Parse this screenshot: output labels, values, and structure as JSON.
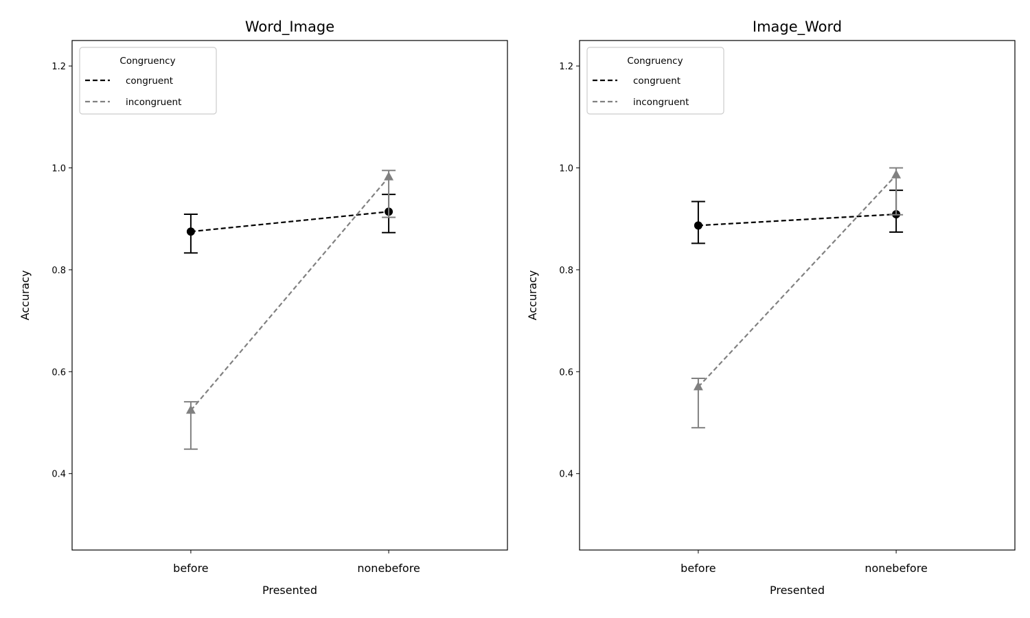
{
  "chart_data": [
    {
      "type": "line",
      "title": "Word_Image",
      "xlabel": "Presented",
      "ylabel": "Accuracy",
      "categories": [
        "before",
        "nonebefore"
      ],
      "ylim": [
        0.25,
        1.25
      ],
      "yticks": [
        0.4,
        0.6,
        0.8,
        1.0,
        1.2
      ],
      "ytick_labels": [
        "0.4",
        "0.6",
        "0.8",
        "1.0",
        "1.2"
      ],
      "grid": false,
      "legend": {
        "title": "Congruency",
        "placement": "top-left"
      },
      "series": [
        {
          "name": "congruent",
          "color": "#000000",
          "marker": "circle",
          "linestyle": "dashed",
          "values": [
            0.875,
            0.914
          ],
          "err_low": [
            0.833,
            0.873
          ],
          "err_high": [
            0.909,
            0.948
          ]
        },
        {
          "name": "incongruent",
          "color": "#808080",
          "marker": "triangle",
          "linestyle": "dashed",
          "values": [
            0.524,
            0.982
          ],
          "err_low": [
            0.448,
            0.903
          ],
          "err_high": [
            0.541,
            0.995
          ]
        }
      ]
    },
    {
      "type": "line",
      "title": "Image_Word",
      "xlabel": "Presented",
      "ylabel": "Accuracy",
      "categories": [
        "before",
        "nonebefore"
      ],
      "ylim": [
        0.25,
        1.25
      ],
      "yticks": [
        0.4,
        0.6,
        0.8,
        1.0,
        1.2
      ],
      "ytick_labels": [
        "0.4",
        "0.6",
        "0.8",
        "1.0",
        "1.2"
      ],
      "grid": false,
      "legend": {
        "title": "Congruency",
        "placement": "top-left"
      },
      "series": [
        {
          "name": "congruent",
          "color": "#000000",
          "marker": "circle",
          "linestyle": "dashed",
          "values": [
            0.887,
            0.909
          ],
          "err_low": [
            0.852,
            0.874
          ],
          "err_high": [
            0.934,
            0.956
          ]
        },
        {
          "name": "incongruent",
          "color": "#808080",
          "marker": "triangle",
          "linestyle": "dashed",
          "values": [
            0.57,
            0.986
          ],
          "err_low": [
            0.49,
            0.908
          ],
          "err_high": [
            0.587,
            1.0
          ]
        }
      ]
    }
  ]
}
